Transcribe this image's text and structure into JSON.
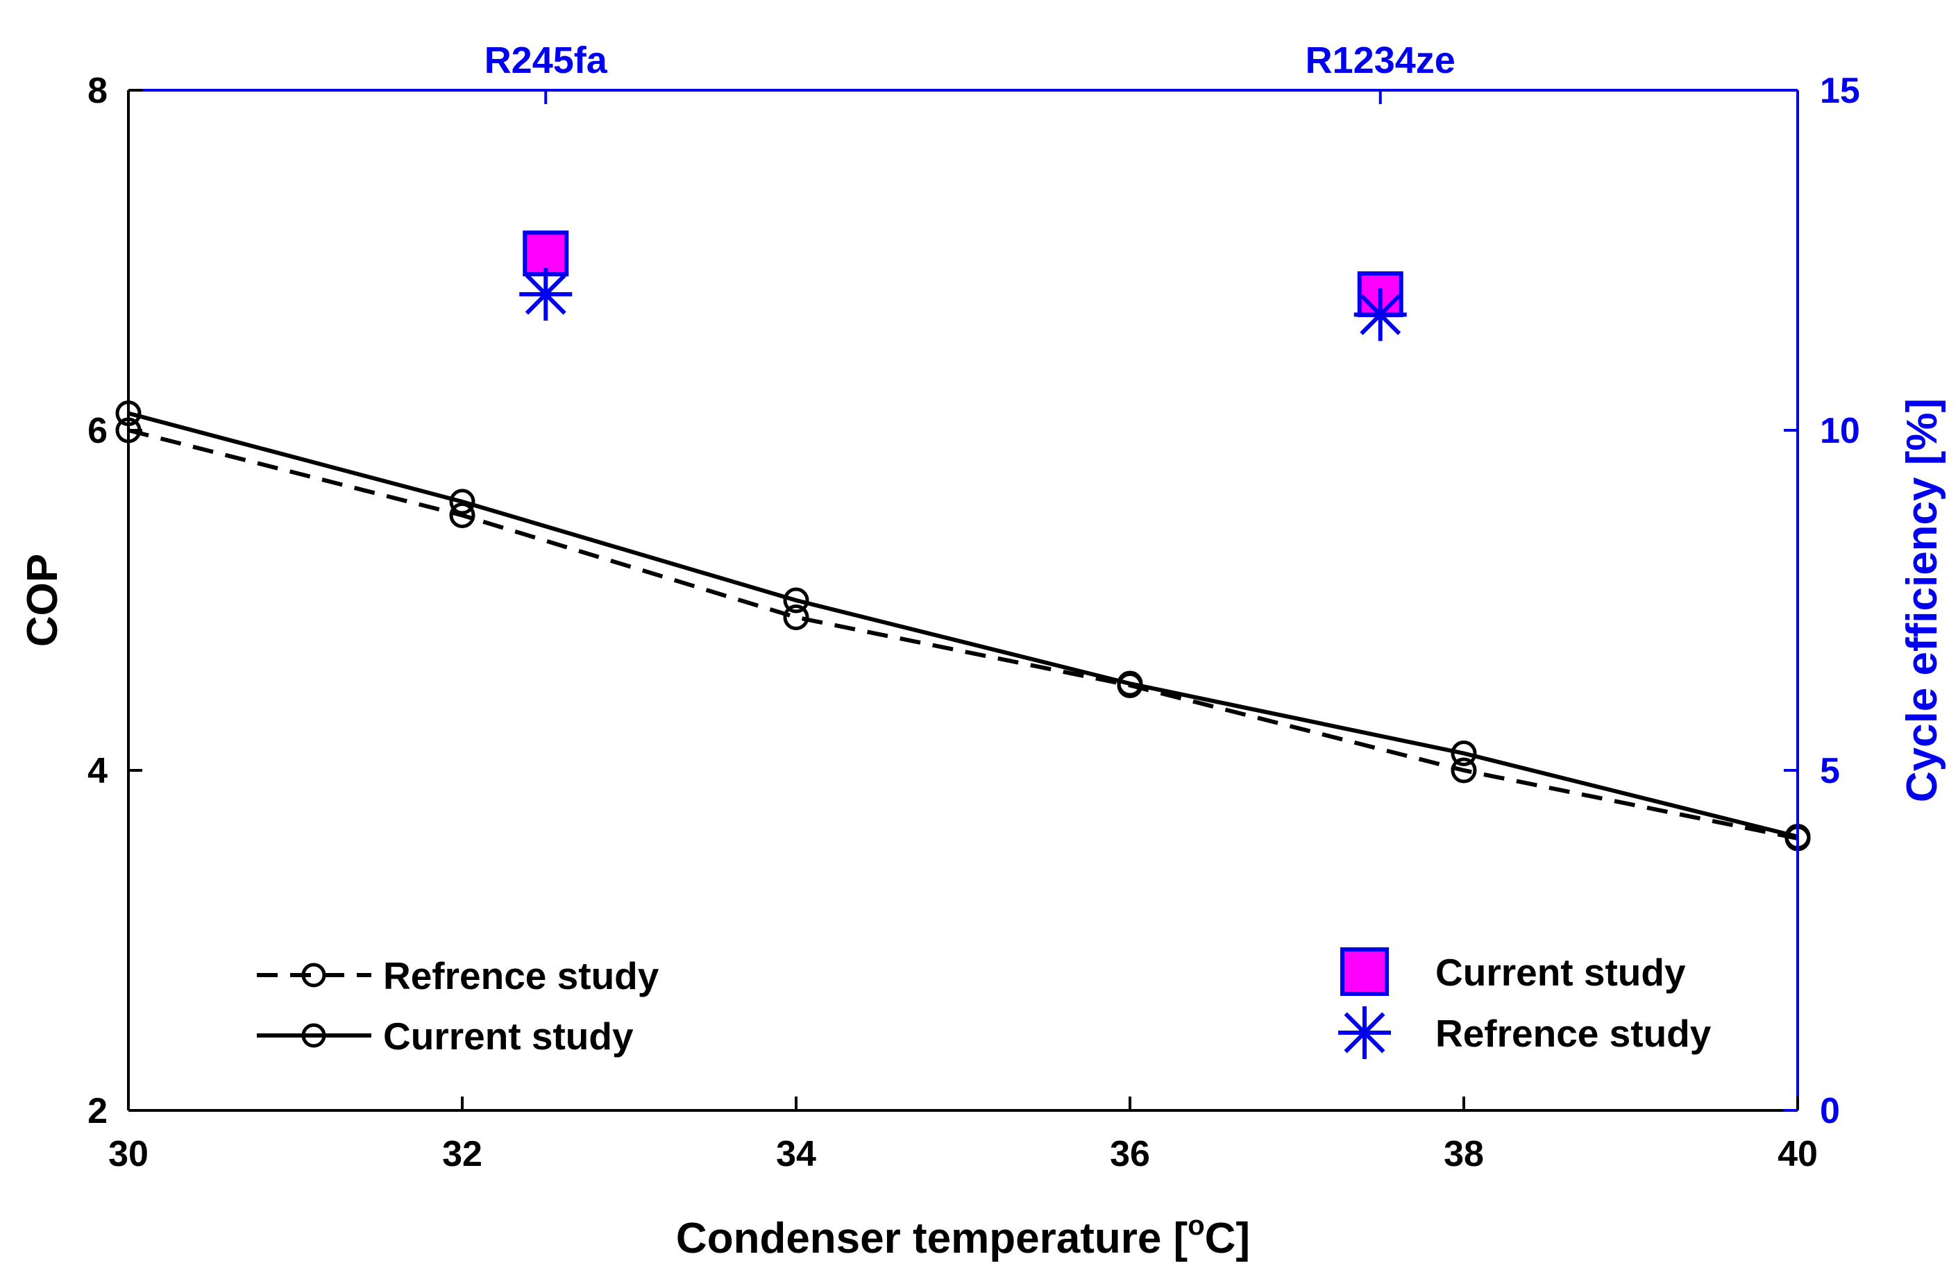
{
  "chart_data": {
    "type": "line",
    "xlabel": "Condenser temperature [oC]",
    "xlabel_main": "Condenser temperature [",
    "xlabel_sup": "o",
    "xlabel_end": "C]",
    "ylabel": "COP",
    "y2label": "Cycle efficiency [%]",
    "xlim": [
      30,
      40
    ],
    "ylim": [
      2,
      8
    ],
    "y2lim": [
      0,
      15
    ],
    "xticks": [
      "30",
      "32",
      "34",
      "36",
      "38",
      "40"
    ],
    "yticks": [
      "2",
      "4",
      "6",
      "8"
    ],
    "y2ticks": [
      "0",
      "5",
      "10",
      "15"
    ],
    "grid": false,
    "top_labels": [
      {
        "text": "R245fa",
        "x": 32.5
      },
      {
        "text": "R1234ze",
        "x": 37.5
      }
    ],
    "series": [
      {
        "name": "Refrence study",
        "axis": "left",
        "style": "dashed",
        "color": "#000000",
        "x": [
          30,
          32,
          34,
          36,
          38,
          40
        ],
        "y": [
          6.0,
          5.5,
          4.9,
          4.5,
          4.0,
          3.6
        ]
      },
      {
        "name": "Current study",
        "axis": "left",
        "style": "solid",
        "color": "#000000",
        "x": [
          30,
          32,
          34,
          36,
          38,
          40
        ],
        "y": [
          6.1,
          5.58,
          5.0,
          4.51,
          4.1,
          3.61
        ]
      },
      {
        "name": "Current study",
        "axis": "right",
        "marker": "square",
        "color": "#ff00ff",
        "edge": "#0000ee",
        "x": [
          32.5,
          37.5
        ],
        "y": [
          12.6,
          12.0
        ]
      },
      {
        "name": "Refrence study",
        "axis": "right",
        "marker": "asterisk",
        "color": "#0000ee",
        "x": [
          32.5,
          37.5
        ],
        "y": [
          12.0,
          11.7
        ]
      }
    ],
    "legend_left": [
      "Refrence study",
      "Current study"
    ],
    "legend_right": [
      "Current study",
      "Refrence study"
    ],
    "legend_left_placement": "bottom-left",
    "legend_right_placement": "bottom-right"
  }
}
